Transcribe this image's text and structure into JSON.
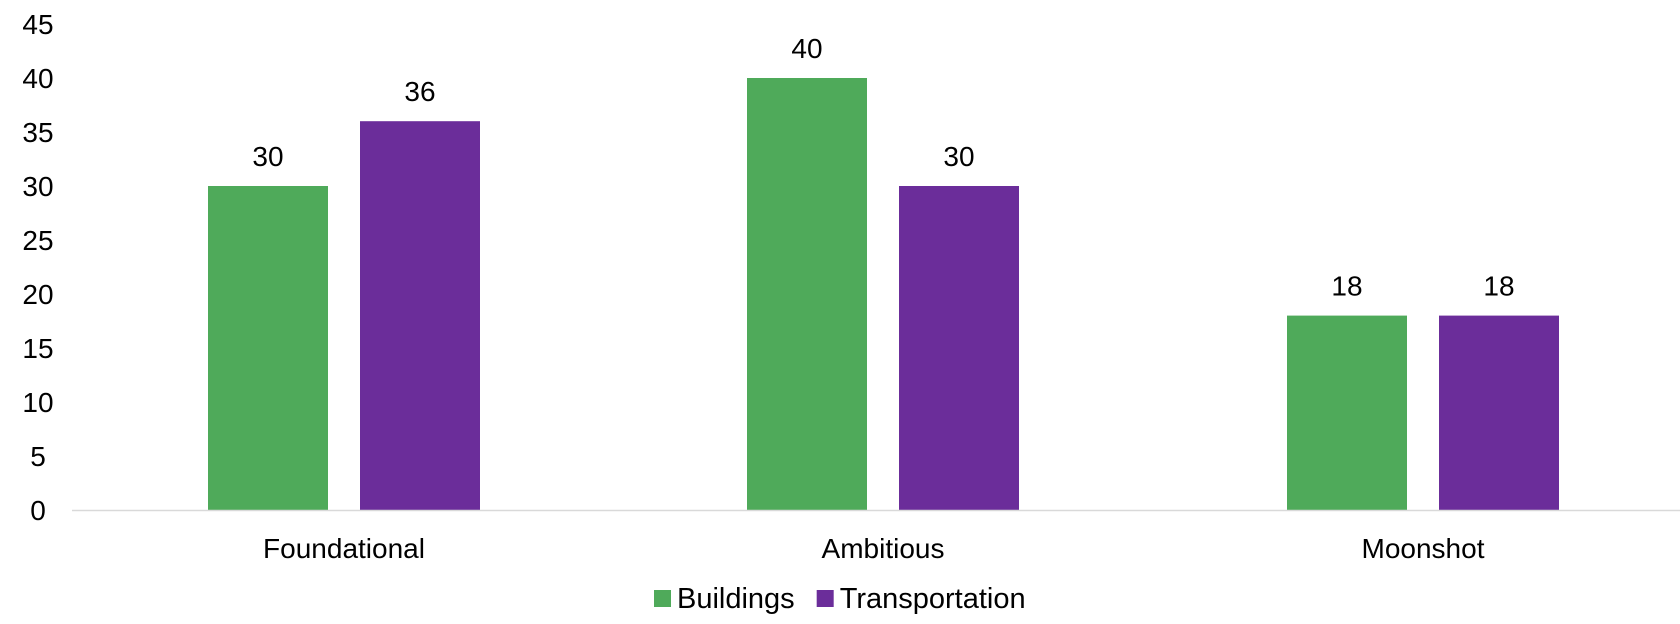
{
  "chart_data": {
    "type": "bar",
    "categories": [
      "Foundational",
      "Ambitious",
      "Moonshot"
    ],
    "series": [
      {
        "name": "Buildings",
        "values": [
          30,
          40,
          18
        ],
        "color": "#4faa5a"
      },
      {
        "name": "Transportation",
        "values": [
          36,
          30,
          18
        ],
        "color": "#6b2d9a"
      }
    ],
    "ylim": [
      0,
      45
    ],
    "yticks": [
      0,
      5,
      10,
      15,
      20,
      25,
      30,
      35,
      40,
      45
    ],
    "grid": false,
    "legend": "bottom-center",
    "data_labels": true,
    "axis_color": "#d9d9d9"
  }
}
